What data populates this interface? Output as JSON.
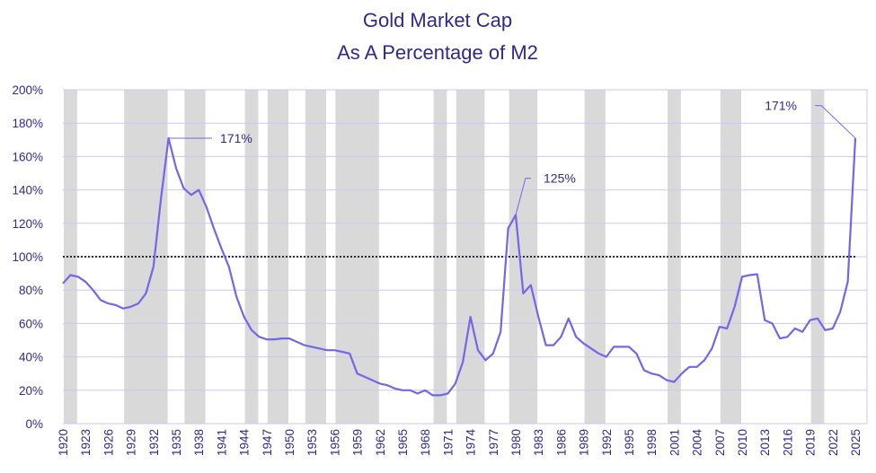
{
  "chart_data": {
    "type": "line",
    "title": "Gold Market Cap",
    "subtitle": "As A Percentage of M2",
    "xlabel": "",
    "ylabel": "",
    "xlim": [
      1920,
      2025
    ],
    "ylim": [
      0,
      200
    ],
    "y_ticks": [
      "0%",
      "20%",
      "40%",
      "60%",
      "80%",
      "100%",
      "120%",
      "140%",
      "160%",
      "180%",
      "200%"
    ],
    "x_ticks": [
      "1920",
      "1923",
      "1926",
      "1929",
      "1932",
      "1935",
      "1938",
      "1941",
      "1944",
      "1947",
      "1950",
      "1953",
      "1956",
      "1959",
      "1962",
      "1965",
      "1968",
      "1971",
      "1974",
      "1977",
      "1980",
      "1983",
      "1986",
      "1989",
      "1992",
      "1995",
      "1998",
      "2001",
      "2004",
      "2007",
      "2010",
      "2013",
      "2016",
      "2019",
      "2022",
      "2025"
    ],
    "grid": true,
    "reference_line": {
      "value": 100,
      "style": "dotted"
    },
    "shaded_periods": [
      [
        1920,
        1922
      ],
      [
        1928,
        1934
      ],
      [
        1936,
        1939
      ],
      [
        1944,
        1946
      ],
      [
        1947,
        1950
      ],
      [
        1952,
        1955
      ],
      [
        1956,
        1962
      ],
      [
        1969,
        1971
      ],
      [
        1972,
        1976
      ],
      [
        1979,
        1983
      ],
      [
        1989,
        1992
      ],
      [
        2000,
        2002
      ],
      [
        2007,
        2010
      ],
      [
        2019,
        2021
      ]
    ],
    "colors": {
      "line": "#7466e6",
      "shade": "#d9d9d9",
      "grid": "#cbc7f2",
      "text": "#2f2a8a"
    },
    "x": [
      1920,
      1921,
      1922,
      1923,
      1924,
      1925,
      1926,
      1927,
      1928,
      1929,
      1930,
      1931,
      1932,
      1933,
      1934,
      1935,
      1936,
      1937,
      1938,
      1939,
      1940,
      1941,
      1942,
      1943,
      1944,
      1945,
      1946,
      1947,
      1948,
      1949,
      1950,
      1951,
      1952,
      1953,
      1954,
      1955,
      1956,
      1957,
      1958,
      1959,
      1960,
      1961,
      1962,
      1963,
      1964,
      1965,
      1966,
      1967,
      1968,
      1969,
      1970,
      1971,
      1972,
      1973,
      1974,
      1975,
      1976,
      1977,
      1978,
      1979,
      1980,
      1981,
      1982,
      1983,
      1984,
      1985,
      1986,
      1987,
      1988,
      1989,
      1990,
      1991,
      1992,
      1993,
      1994,
      1995,
      1996,
      1997,
      1998,
      1999,
      2000,
      2001,
      2002,
      2003,
      2004,
      2005,
      2006,
      2007,
      2008,
      2009,
      2010,
      2011,
      2012,
      2013,
      2014,
      2015,
      2016,
      2017,
      2018,
      2019,
      2020,
      2021,
      2022,
      2023,
      2024,
      2025
    ],
    "values": [
      84,
      89,
      88,
      85,
      80,
      74,
      72,
      71,
      69,
      70,
      72,
      78,
      94,
      135,
      171,
      153,
      141,
      137,
      140,
      130,
      117,
      105,
      94,
      76,
      64,
      56,
      52,
      50.5,
      50.5,
      51,
      51,
      49,
      47,
      46,
      45,
      44,
      44,
      43,
      42,
      30,
      28,
      26,
      24,
      23,
      21,
      20,
      20,
      18,
      20,
      17,
      17,
      18,
      24,
      37,
      64,
      44,
      38,
      42,
      55,
      117,
      125,
      78,
      83,
      64,
      47,
      47,
      52,
      63,
      52,
      48,
      45,
      42,
      40,
      46,
      46,
      46,
      42,
      32,
      30,
      29,
      26,
      25,
      30,
      34,
      34,
      38,
      45,
      58,
      57,
      70,
      88,
      89,
      89.5,
      62,
      60,
      51,
      52,
      57,
      55,
      62,
      63,
      56,
      57,
      67,
      85,
      171
    ],
    "annotations": [
      {
        "x": 1934,
        "y": 171,
        "label": "171%"
      },
      {
        "x": 1980,
        "y": 125,
        "label": "125%"
      },
      {
        "x": 2025,
        "y": 171,
        "label": "171%"
      }
    ]
  }
}
